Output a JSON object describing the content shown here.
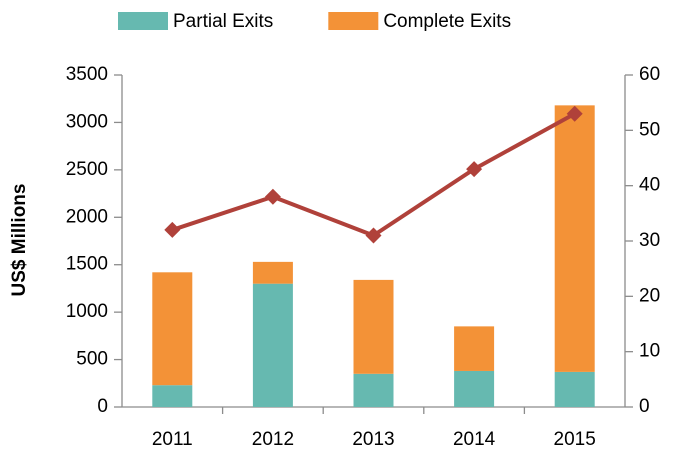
{
  "chart_data": {
    "type": "bar",
    "stacked": true,
    "ylabel": "US$ Millions",
    "categories": [
      "2011",
      "2012",
      "2013",
      "2014",
      "2015"
    ],
    "series": [
      {
        "name": "Partial Exits",
        "color": "#66b9b0",
        "values": [
          230,
          1300,
          350,
          380,
          370
        ]
      },
      {
        "name": "Complete Exits",
        "color": "#f39237",
        "values": [
          1190,
          230,
          990,
          470,
          2810
        ]
      },
      {
        "type": "line",
        "axis": "y2",
        "color": "#b0413a",
        "values": [
          32,
          38,
          31,
          43,
          53
        ]
      }
    ],
    "ylim": [
      0,
      3500
    ],
    "yticks": [
      0,
      500,
      1000,
      1500,
      2000,
      2500,
      3000,
      3500
    ],
    "y2lim": [
      0,
      60
    ],
    "y2ticks": [
      0,
      10,
      20,
      30,
      40,
      50,
      60
    ],
    "legend": "top"
  }
}
